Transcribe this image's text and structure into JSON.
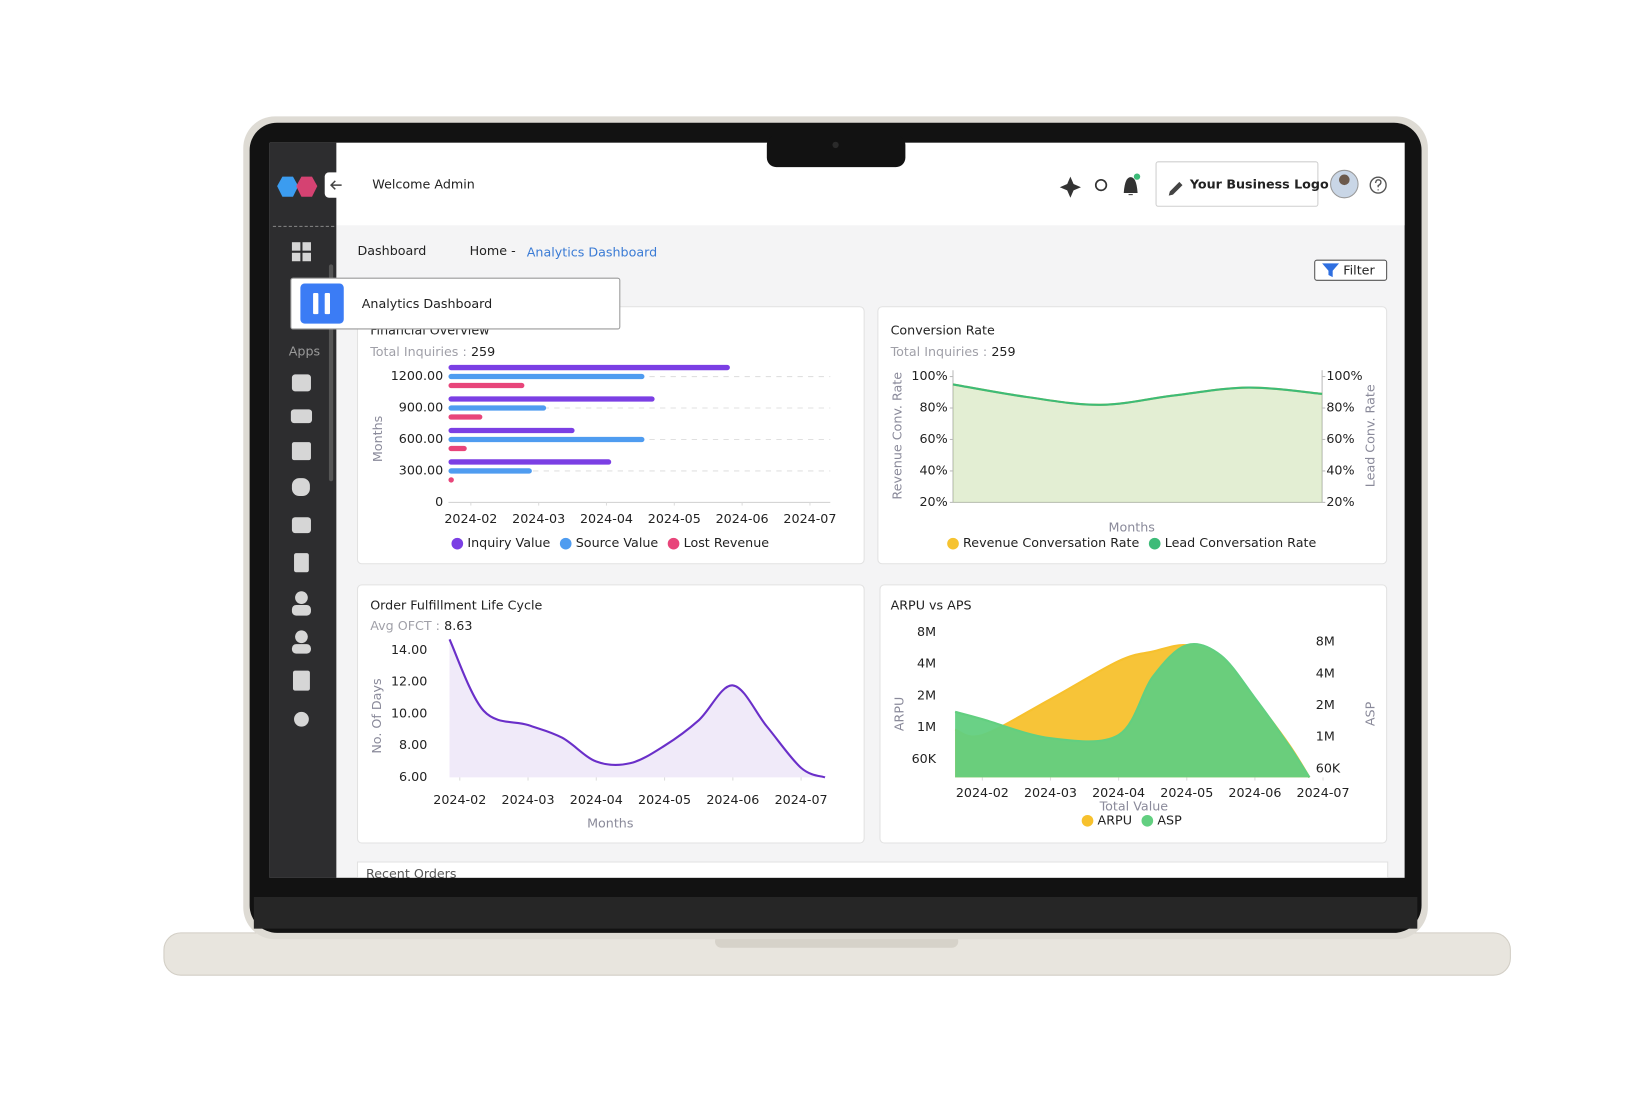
{
  "header": {
    "welcome": "Welcome Admin",
    "logo_button": "Your Business Logo"
  },
  "sidebar": {
    "section": "Apps"
  },
  "page": {
    "title": "Dashboard",
    "breadcrumb_home": "Home -",
    "breadcrumb_current": "Analytics Dashboard",
    "filter": "Filter",
    "badge": "Analytics Dashboard"
  },
  "recent_orders": {
    "title": "Recent Orders"
  },
  "chart_data": [
    {
      "type": "hbar",
      "title": "Financial Overview",
      "stat_label": "Total Inquiries :",
      "stat_value": 259,
      "ylabel": "Months",
      "y": [
        1200,
        900,
        600,
        300
      ],
      "ylim": [
        0,
        1200
      ],
      "yticks": [
        {
          "value": 1200,
          "label": "1200.00"
        },
        {
          "value": 900,
          "label": "900.00"
        },
        {
          "value": 600,
          "label": "600.00"
        },
        {
          "value": 300,
          "label": "300.00"
        },
        0
      ],
      "xlim": [
        0.67,
        6.3
      ],
      "xticks": [
        {
          "value": 1,
          "label": "2024-02"
        },
        {
          "value": 2,
          "label": "2024-03"
        },
        {
          "value": 3,
          "label": "2024-04"
        },
        {
          "value": 4,
          "label": "2024-05"
        },
        {
          "value": 5,
          "label": "2024-06"
        },
        {
          "value": 6,
          "label": "2024-07"
        }
      ],
      "grid": true,
      "series": [
        {
          "name": "Inquiry Value",
          "color": "#7b3fe4",
          "values": [
            4.82,
            3.71,
            2.53,
            3.07
          ]
        },
        {
          "name": "Source Value",
          "color": "#4f9cf0",
          "values": [
            3.56,
            2.11,
            3.56,
            1.9
          ]
        },
        {
          "name": "Lost Revenue",
          "color": "#e8457a",
          "values": [
            1.79,
            1.17,
            0.94,
            0.75
          ]
        }
      ]
    },
    {
      "type": "area",
      "title": "Conversion Rate",
      "stat_label": "Total Inquiries :",
      "stat_value": 259,
      "xlabel": "Months",
      "ylabel": "Revenue Conv. Rate",
      "y2label": "Lead Conv. Rate",
      "ylim": [
        20,
        100
      ],
      "yticks": [
        {
          "value": 100,
          "label": "100%"
        },
        {
          "value": 80,
          "label": "80%"
        },
        {
          "value": 60,
          "label": "60%"
        },
        {
          "value": 40,
          "label": "40%"
        },
        {
          "value": 20,
          "label": "20%"
        }
      ],
      "y2lim": [
        20,
        100
      ],
      "y2ticks": [
        {
          "value": 100,
          "label": "100%"
        },
        {
          "value": 80,
          "label": "80%"
        },
        {
          "value": 60,
          "label": "60%"
        },
        {
          "value": 40,
          "label": "40%"
        },
        {
          "value": 20,
          "label": "20%"
        }
      ],
      "series": [
        {
          "name": "Revenue Conversation Rate",
          "color": "#f6c330",
          "values": [
            95,
            87,
            82,
            88,
            93,
            89
          ]
        },
        {
          "name": "Lead Conversation Rate",
          "color": "#3dbb78",
          "axis": "y2",
          "values": [
            95,
            87,
            82,
            88,
            93,
            89
          ]
        }
      ]
    },
    {
      "type": "area",
      "title": "Order Fulfillment Life Cycle",
      "stat_label": "Avg OFCT :",
      "stat_value": 8.63,
      "xlabel": "Months",
      "ylabel": "No. Of Days",
      "x": [
        -0.15,
        0.35,
        1,
        1.5,
        2,
        2.5,
        3,
        3.5,
        4,
        4.5,
        5,
        5.35
      ],
      "xlim": [
        -0.15,
        5.35
      ],
      "xticks": [
        {
          "value": 0,
          "label": "2024-02"
        },
        {
          "value": 1,
          "label": "2024-03"
        },
        {
          "value": 2,
          "label": "2024-04"
        },
        {
          "value": 3,
          "label": "2024-05"
        },
        {
          "value": 4,
          "label": "2024-06"
        },
        {
          "value": 5,
          "label": "2024-07"
        }
      ],
      "ylim": [
        6,
        14.8
      ],
      "yticks": [
        {
          "value": 14,
          "label": "14.00"
        },
        {
          "value": 12,
          "label": "12.00"
        },
        {
          "value": 10,
          "label": "10.00"
        },
        {
          "value": 8,
          "label": "8.00"
        },
        {
          "value": 6,
          "label": "6.00"
        }
      ],
      "series": [
        {
          "color": "#6a2fc9",
          "values": [
            14.7,
            10.2,
            9.3,
            8.5,
            7.0,
            6.9,
            8.0,
            9.6,
            11.8,
            9.2,
            6.6,
            6.0
          ]
        }
      ]
    },
    {
      "type": "area",
      "title": "ARPU vs APS",
      "xlabel": "Total Value",
      "ylabel": "ARPU",
      "y2label": "ASP",
      "yscale": "tick-spaced",
      "x": [
        -0.4,
        0,
        1,
        2,
        2.5,
        3,
        3.5,
        4,
        4.5,
        4.8
      ],
      "xlim": [
        -0.4,
        4.8
      ],
      "xticks": [
        {
          "value": 0,
          "label": "2024-02"
        },
        {
          "value": 1,
          "label": "2024-03"
        },
        {
          "value": 2,
          "label": "2024-04"
        },
        {
          "value": 3,
          "label": "2024-05"
        },
        {
          "value": 4,
          "label": "2024-06"
        },
        {
          "value": 5,
          "label": "2024-07"
        }
      ],
      "ylim": [
        0,
        8000000
      ],
      "yticks": [
        {
          "value": 60000,
          "label": "60K"
        },
        {
          "value": 1000000,
          "label": "1M"
        },
        {
          "value": 2000000,
          "label": "2M"
        },
        {
          "value": 4000000,
          "label": "4M"
        },
        {
          "value": 8000000,
          "label": "8M"
        }
      ],
      "y2lim": [
        0,
        8000000
      ],
      "y2ticks": [
        {
          "value": 60000,
          "label": "60K"
        },
        {
          "value": 1000000,
          "label": "1M"
        },
        {
          "value": 2000000,
          "label": "2M"
        },
        {
          "value": 4000000,
          "label": "4M"
        },
        {
          "value": 8000000,
          "label": "8M"
        }
      ],
      "series": [
        {
          "name": "ARPU",
          "color": "#f7c12d",
          "values": [
            940000,
            780000,
            1900000,
            4400000,
            5600000,
            6400000,
            4800000,
            1900000,
            500000,
            0
          ]
        },
        {
          "name": "ASP",
          "color": "#62cf80",
          "axis": "y2",
          "values": [
            1800000,
            1570000,
            970000,
            1070000,
            3800000,
            7600000,
            6300000,
            2470000,
            750000,
            0
          ]
        }
      ]
    }
  ]
}
